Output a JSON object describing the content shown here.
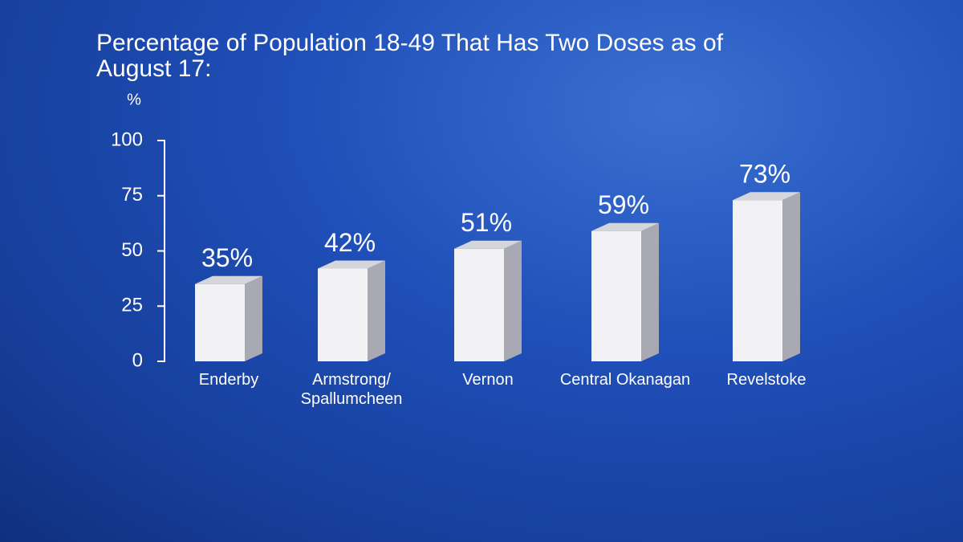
{
  "chart_data": {
    "type": "bar",
    "title": "Percentage of Population 18-49 That Has Two Doses as of August 17:",
    "y_label": "%",
    "categories": [
      "Enderby",
      "Armstrong/\nSpallumcheen",
      "Vernon",
      "Central Okanagan",
      "Revelstoke"
    ],
    "values": [
      35,
      42,
      51,
      59,
      73
    ],
    "value_labels": [
      "35%",
      "42%",
      "51%",
      "59%",
      "73%"
    ],
    "color": "#f2f2f4",
    "ylim": [
      0,
      100
    ],
    "yticks": [
      0,
      25,
      50,
      75,
      100
    ],
    "grid": false
  }
}
